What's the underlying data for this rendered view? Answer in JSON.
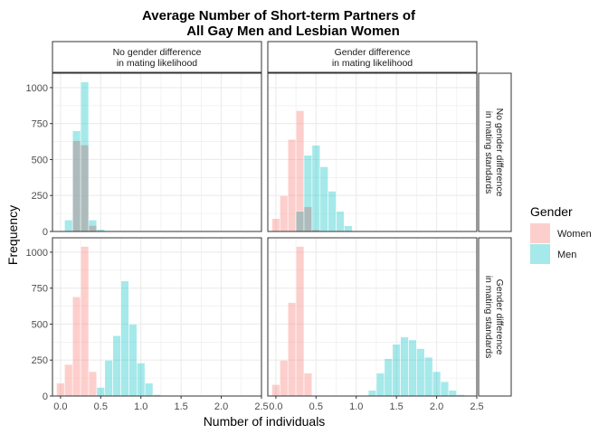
{
  "chart_data": {
    "type": "bar",
    "title_line1": "Average Number of Short-term Partners of",
    "title_line2": "All Gay Men and Lesbian Women",
    "xlabel": "Number of individuals",
    "ylabel": "Frequency",
    "xlim": [
      -0.1,
      2.5
    ],
    "ylim": [
      0,
      1100
    ],
    "x_ticks": [
      0.0,
      0.5,
      1.0,
      1.5,
      2.0,
      2.5
    ],
    "x_tick_labels": [
      "0.0",
      "0.5",
      "1.0",
      "1.5",
      "2.0",
      "2.5"
    ],
    "y_ticks": [
      0,
      250,
      500,
      750,
      1000
    ],
    "y_tick_labels": [
      "0",
      "250",
      "500",
      "750",
      "1000"
    ],
    "bin_width": 0.1,
    "grid": true,
    "legend_position": "right",
    "col_strips": [
      "No gender difference\nin mating likelihood",
      "Gender difference\nin mating likelihood"
    ],
    "row_strips": [
      "No gender difference\nin mating standards",
      "Gender difference\nin mating standards"
    ],
    "legend": {
      "title": "Gender",
      "entries": [
        {
          "label": "Women",
          "color": "#F8766D"
        },
        {
          "label": "Men",
          "color": "#00BFC4"
        }
      ]
    },
    "colors": {
      "women": "#F8766D",
      "men": "#00BFC4",
      "overlap": "#B7AFB1",
      "strip_bg": "#ffffff",
      "grid": "#EBEBEB"
    },
    "panels": [
      {
        "row": 0,
        "col": 0,
        "series": [
          {
            "name": "Women",
            "bins": [
              [
                0.2,
                630
              ],
              [
                0.3,
                600
              ],
              [
                0.4,
                40
              ]
            ]
          },
          {
            "name": "Men",
            "bins": [
              [
                0.1,
                80
              ],
              [
                0.2,
                700
              ],
              [
                0.3,
                1040
              ],
              [
                0.4,
                80
              ],
              [
                0.5,
                15
              ]
            ]
          }
        ]
      },
      {
        "row": 0,
        "col": 1,
        "series": [
          {
            "name": "Women",
            "bins": [
              [
                0.0,
                90
              ],
              [
                0.1,
                250
              ],
              [
                0.2,
                640
              ],
              [
                0.3,
                840
              ],
              [
                0.4,
                170
              ],
              [
                0.5,
                10
              ]
            ]
          },
          {
            "name": "Men",
            "bins": [
              [
                0.3,
                140
              ],
              [
                0.4,
                530
              ],
              [
                0.5,
                600
              ],
              [
                0.6,
                450
              ],
              [
                0.7,
                280
              ],
              [
                0.8,
                140
              ],
              [
                0.9,
                40
              ]
            ]
          }
        ]
      },
      {
        "row": 1,
        "col": 0,
        "series": [
          {
            "name": "Women",
            "bins": [
              [
                0.0,
                90
              ],
              [
                0.1,
                220
              ],
              [
                0.2,
                690
              ],
              [
                0.3,
                1040
              ],
              [
                0.4,
                170
              ],
              [
                0.5,
                5
              ]
            ]
          },
          {
            "name": "Men",
            "bins": [
              [
                0.5,
                60
              ],
              [
                0.6,
                250
              ],
              [
                0.7,
                420
              ],
              [
                0.8,
                800
              ],
              [
                0.9,
                500
              ],
              [
                1.0,
                230
              ],
              [
                1.1,
                90
              ],
              [
                1.2,
                10
              ]
            ]
          }
        ]
      },
      {
        "row": 1,
        "col": 1,
        "series": [
          {
            "name": "Women",
            "bins": [
              [
                0.0,
                80
              ],
              [
                0.1,
                250
              ],
              [
                0.2,
                650
              ],
              [
                0.3,
                1040
              ],
              [
                0.4,
                160
              ],
              [
                0.5,
                5
              ]
            ]
          },
          {
            "name": "Men",
            "bins": [
              [
                1.2,
                40
              ],
              [
                1.3,
                160
              ],
              [
                1.4,
                260
              ],
              [
                1.5,
                360
              ],
              [
                1.6,
                410
              ],
              [
                1.7,
                390
              ],
              [
                1.8,
                330
              ],
              [
                1.9,
                270
              ],
              [
                2.0,
                170
              ],
              [
                2.1,
                100
              ],
              [
                2.2,
                40
              ],
              [
                2.3,
                10
              ]
            ]
          }
        ]
      }
    ]
  }
}
